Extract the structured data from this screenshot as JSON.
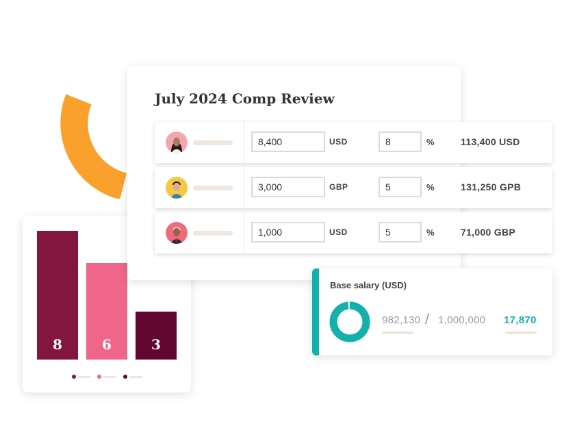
{
  "colors": {
    "accent_orange": "#f9a12c",
    "teal": "#13b0ac",
    "bar_dark": "#82163f",
    "bar_pink": "#f0668a",
    "bar_maroon": "#610630"
  },
  "decoration": {
    "icon": "orange-arc-icon"
  },
  "comp_review": {
    "title": "July 2024 Comp Review",
    "rows": [
      {
        "avatar_icon": "employee-avatar-icon",
        "amount": "8,400",
        "currency": "USD",
        "percent": "8",
        "percent_symbol": "%",
        "total": "113,400 USD"
      },
      {
        "avatar_icon": "employee-avatar-icon",
        "amount": "3,000",
        "currency": "GBP",
        "percent": "5",
        "percent_symbol": "%",
        "total": "131,250 GPB"
      },
      {
        "avatar_icon": "employee-avatar-icon",
        "amount": "1,000",
        "currency": "USD",
        "percent": "5",
        "percent_symbol": "%",
        "total": "71,000 GBP"
      }
    ]
  },
  "chart_data": {
    "type": "bar",
    "categories": [
      "",
      "",
      ""
    ],
    "values": [
      8,
      6,
      3
    ],
    "data_labels": [
      "8",
      "6",
      "3"
    ],
    "bar_colors": [
      "#82163f",
      "#f0668a",
      "#610630"
    ],
    "title": "",
    "xlabel": "",
    "ylabel": "",
    "ylim": [
      0,
      8
    ],
    "grid": false,
    "legend": "bottom-center"
  },
  "base_salary": {
    "title": "Base salary (USD)",
    "current": "982,130",
    "separator": "/",
    "total": "1,000,000",
    "remaining": "17,870",
    "progress_fraction": 0.9821
  }
}
